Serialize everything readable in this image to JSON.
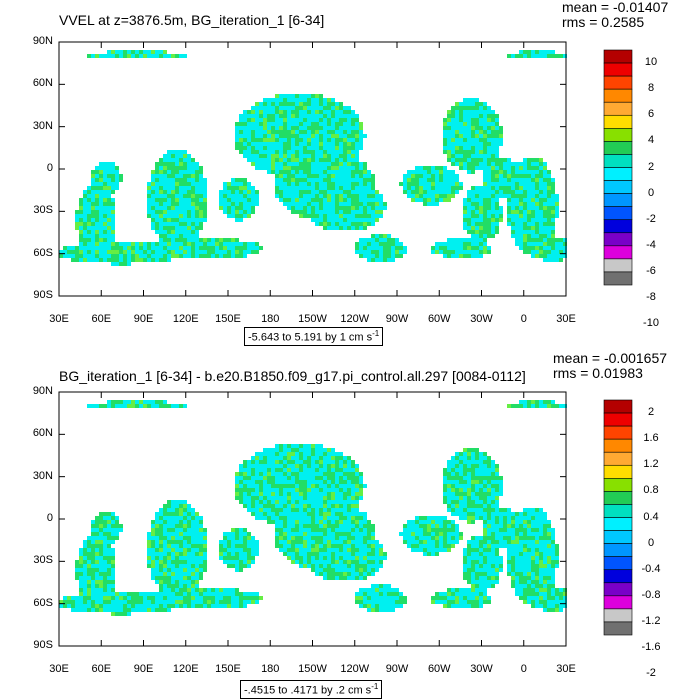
{
  "panels": [
    {
      "title": "VVEL at z=3876.5m, BG_iteration_1 [6-34]",
      "mean": "mean = -0.01407",
      "rms": "rms = 0.2585",
      "range": "-5.643 to 5.191 by 1 cm s",
      "range_sup": "-1",
      "colorbar_labels": [
        "10",
        "8",
        "6",
        "4",
        "2",
        "0",
        "-2",
        "-4",
        "-6",
        "-8",
        "-10"
      ]
    },
    {
      "title": "BG_iteration_1 [6-34] - b.e20.B1850.f09_g17.pi_control.all.297 [0084-0112]",
      "mean": "mean = -0.001657",
      "rms": "rms = 0.01983",
      "range": "-.4515 to .4171 by .2 cm s",
      "range_sup": "-1",
      "colorbar_labels": [
        "2",
        "1.6",
        "1.2",
        "0.8",
        "0.4",
        "0",
        "-0.4",
        "-0.8",
        "-1.2",
        "-1.6",
        "-2"
      ]
    }
  ],
  "lat_ticks": [
    "90N",
    "60N",
    "30N",
    "0",
    "30S",
    "60S",
    "90S"
  ],
  "lon_ticks": [
    "30E",
    "60E",
    "90E",
    "120E",
    "150E",
    "180",
    "150W",
    "120W",
    "90W",
    "60W",
    "30W",
    "0",
    "30E"
  ],
  "colorbar_colors": [
    "#b40000",
    "#ee0000",
    "#ff4400",
    "#ff8800",
    "#ffaa33",
    "#ffdd00",
    "#88e000",
    "#22cc55",
    "#00e0c0",
    "#00f0ff",
    "#00c8ff",
    "#0096ff",
    "#0055ff",
    "#0000dd",
    "#7a00c8",
    "#dd00dd",
    "#c8c8c8",
    "#707070"
  ],
  "field_colors": {
    "cyan": "#00f0f0",
    "green": "#22dd66",
    "light_green": "#66ee44"
  }
}
